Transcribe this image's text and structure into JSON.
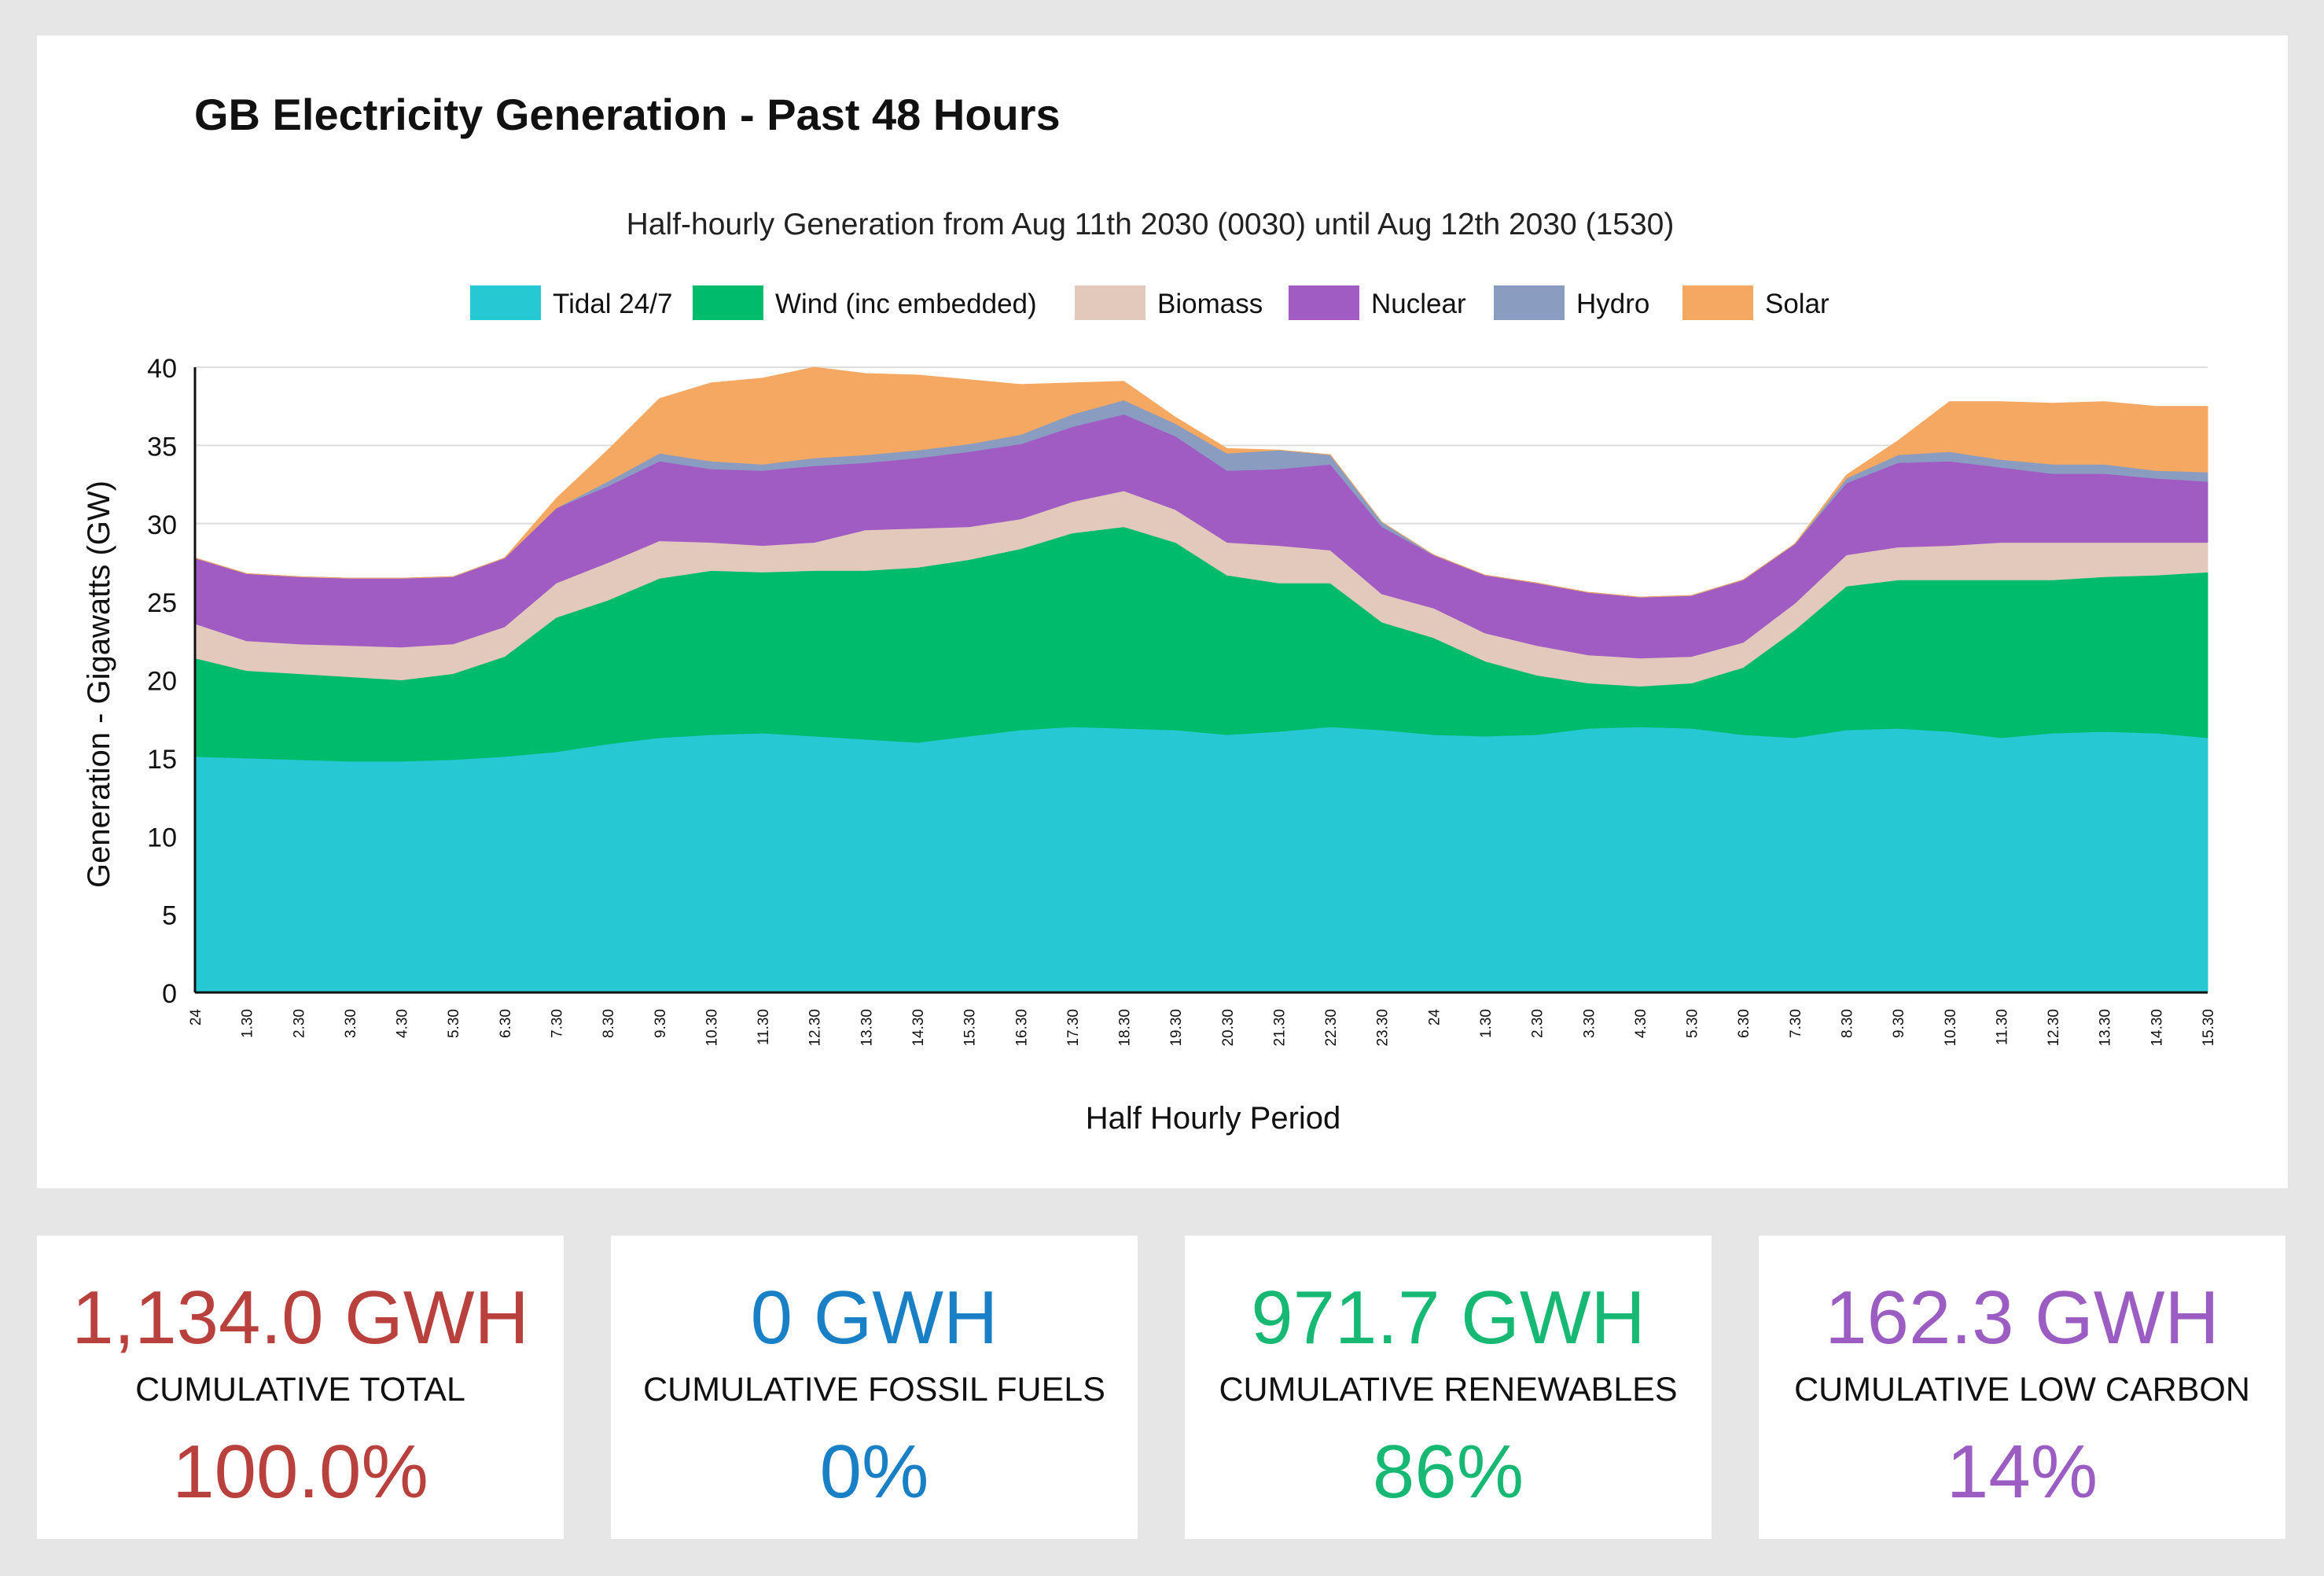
{
  "page": {
    "title": "GB Electricity Generation - Past 48 Hours"
  },
  "chart_data": {
    "type": "area",
    "stacked": true,
    "title": "GB Electricity Generation - Past 48 Hours",
    "subtitle": "Half-hourly Generation from Aug 11th 2030 (0030) until Aug 12th 2030 (1530)",
    "xlabel": "Half Hourly Period",
    "ylabel": "Generation - Gigawatts (GW)",
    "ylim": [
      0,
      40
    ],
    "yticks": [
      0,
      5,
      10,
      15,
      20,
      25,
      30,
      35,
      40
    ],
    "grid": true,
    "legend_position": "top",
    "categories": [
      "24",
      "1.30",
      "2.30",
      "3.30",
      "4.30",
      "5.30",
      "6.30",
      "7.30",
      "8.30",
      "9.30",
      "10.30",
      "11.30",
      "12.30",
      "13.30",
      "14.30",
      "15.30",
      "16.30",
      "17.30",
      "18.30",
      "19.30",
      "20.30",
      "21.30",
      "22.30",
      "23.30",
      "24",
      "1.30",
      "2.30",
      "3.30",
      "4.30",
      "5.30",
      "6.30",
      "7.30",
      "8.30",
      "9.30",
      "10.30",
      "11.30",
      "12.30",
      "13.30",
      "14.30",
      "15.30"
    ],
    "series": [
      {
        "name": "Tidal 24/7",
        "color": "#26c8d4",
        "values": [
          15.1,
          15.0,
          14.9,
          14.8,
          14.8,
          14.9,
          15.1,
          15.4,
          15.9,
          16.3,
          16.5,
          16.6,
          16.4,
          16.2,
          16.0,
          16.4,
          16.8,
          17.0,
          16.9,
          16.8,
          16.5,
          16.7,
          17.0,
          16.8,
          16.5,
          16.4,
          16.5,
          16.9,
          17.0,
          16.9,
          16.5,
          16.3,
          16.8,
          16.9,
          16.7,
          16.3,
          16.6,
          16.7,
          16.6,
          16.3
        ]
      },
      {
        "name": "Wind (inc embedded)",
        "color": "#00bb6c",
        "values": [
          6.3,
          5.6,
          5.5,
          5.4,
          5.2,
          5.5,
          6.4,
          8.6,
          9.2,
          10.2,
          10.5,
          10.3,
          10.6,
          10.8,
          11.2,
          11.3,
          11.6,
          12.4,
          12.9,
          12.0,
          10.2,
          9.5,
          9.2,
          6.9,
          6.2,
          4.8,
          3.8,
          2.9,
          2.6,
          2.9,
          4.3,
          6.9,
          9.2,
          9.5,
          9.7,
          10.1,
          9.8,
          9.9,
          10.1,
          10.6
        ]
      },
      {
        "name": "Biomass",
        "color": "#e2c9bc",
        "values": [
          2.2,
          1.9,
          1.9,
          2.0,
          2.1,
          1.9,
          1.9,
          2.2,
          2.4,
          2.4,
          1.8,
          1.7,
          1.8,
          2.6,
          2.5,
          2.1,
          1.9,
          2.0,
          2.3,
          2.1,
          2.1,
          2.4,
          2.1,
          1.8,
          1.9,
          1.8,
          1.9,
          1.8,
          1.8,
          1.7,
          1.6,
          1.7,
          2.0,
          2.1,
          2.2,
          2.4,
          2.4,
          2.2,
          2.1,
          1.9
        ]
      },
      {
        "name": "Nuclear",
        "color": "#a05cc3",
        "values": [
          4.2,
          4.3,
          4.3,
          4.3,
          4.4,
          4.3,
          4.4,
          4.8,
          4.9,
          5.1,
          4.7,
          4.8,
          4.9,
          4.3,
          4.5,
          4.8,
          4.8,
          4.8,
          4.9,
          4.7,
          4.6,
          4.9,
          5.5,
          4.3,
          3.4,
          3.7,
          4.0,
          4.0,
          3.9,
          3.9,
          4.0,
          3.8,
          4.6,
          5.4,
          5.4,
          4.8,
          4.4,
          4.4,
          4.1,
          3.9
        ]
      },
      {
        "name": "Hydro",
        "color": "#8a9dc1",
        "values": [
          0,
          0,
          0,
          0,
          0,
          0,
          0,
          0,
          0.3,
          0.5,
          0.5,
          0.4,
          0.5,
          0.5,
          0.5,
          0.5,
          0.6,
          0.8,
          0.9,
          0.8,
          1.1,
          1.2,
          0.6,
          0.3,
          0,
          0,
          0,
          0,
          0,
          0,
          0,
          0,
          0.3,
          0.5,
          0.6,
          0.5,
          0.6,
          0.6,
          0.5,
          0.6
        ]
      },
      {
        "name": "Solar",
        "color": "#f5a862",
        "values": [
          0,
          0,
          0,
          0,
          0,
          0,
          0,
          0.6,
          2.0,
          3.5,
          5.0,
          5.5,
          5.8,
          5.2,
          4.8,
          4.1,
          3.2,
          2.0,
          1.2,
          0.4,
          0.3,
          0,
          0,
          0,
          0,
          0,
          0,
          0,
          0,
          0,
          0,
          0,
          0.2,
          0.9,
          3.2,
          3.7,
          3.9,
          4.0,
          4.1,
          4.2
        ]
      }
    ]
  },
  "cards": [
    {
      "value": "1,134.0 GWH",
      "label": "CUMULATIVE TOTAL",
      "percent": "100.0%",
      "color": "#b8403d"
    },
    {
      "value": "0 GWH",
      "label": "CUMULATIVE FOSSIL FUELS",
      "percent": "0%",
      "color": "#1a80c6"
    },
    {
      "value": "971.7 GWH",
      "label": "CUMULATIVE RENEWABLES",
      "percent": "86%",
      "color": "#16b874"
    },
    {
      "value": "162.3 GWH",
      "label": "CUMULATIVE LOW CARBON",
      "percent": "14%",
      "color": "#9b5dc2"
    }
  ]
}
